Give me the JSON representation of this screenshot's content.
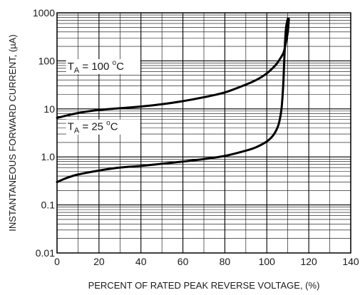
{
  "chart_data": {
    "type": "line",
    "title": "",
    "xlabel": "PERCENT OF RATED PEAK REVERSE VOLTAGE, (%)",
    "ylabel": "INSTANTANEOUS FORWARD CURRENT, (µA)",
    "xlim": [
      0,
      140
    ],
    "ylim": [
      0.01,
      1000
    ],
    "yscale": "log",
    "grid": true,
    "x_ticks": [
      0,
      20,
      40,
      60,
      80,
      100,
      120,
      140
    ],
    "x_tick_labels": [
      "0",
      "20",
      "40",
      "60",
      "80",
      "100",
      "120",
      "140"
    ],
    "y_ticks": [
      0.01,
      0.1,
      1,
      10,
      100,
      1000
    ],
    "y_tick_labels": [
      "0.01",
      "0.1",
      "1.0",
      "10",
      "100",
      "1000"
    ],
    "series": [
      {
        "name": "TA = 100 °C",
        "label_main": "T",
        "label_sub": "A",
        "label_rest": " = 100 ",
        "label_deg": "o",
        "label_unit": "C",
        "x": [
          0,
          10,
          20,
          30,
          40,
          50,
          60,
          70,
          80,
          90,
          95,
          100,
          104,
          106,
          108,
          109,
          110,
          110.5
        ],
        "y": [
          6.5,
          8.2,
          9.5,
          10.3,
          11.2,
          12.5,
          14.5,
          17.5,
          22,
          32,
          40,
          55,
          80,
          105,
          150,
          230,
          400,
          750
        ]
      },
      {
        "name": "TA = 25 °C",
        "label_main": "T",
        "label_sub": "A",
        "label_rest": " = 25 ",
        "label_deg": "o",
        "label_unit": "C",
        "x": [
          0,
          5,
          10,
          20,
          30,
          40,
          50,
          60,
          70,
          80,
          90,
          95,
          100,
          103,
          105,
          106,
          107,
          107.8,
          108.3,
          108.7,
          109.2,
          110
        ],
        "y": [
          0.3,
          0.37,
          0.43,
          0.52,
          0.6,
          0.65,
          0.72,
          0.8,
          0.9,
          1.05,
          1.35,
          1.6,
          2.1,
          2.8,
          4,
          5.5,
          10,
          30,
          100,
          250,
          500,
          750
        ]
      }
    ]
  }
}
